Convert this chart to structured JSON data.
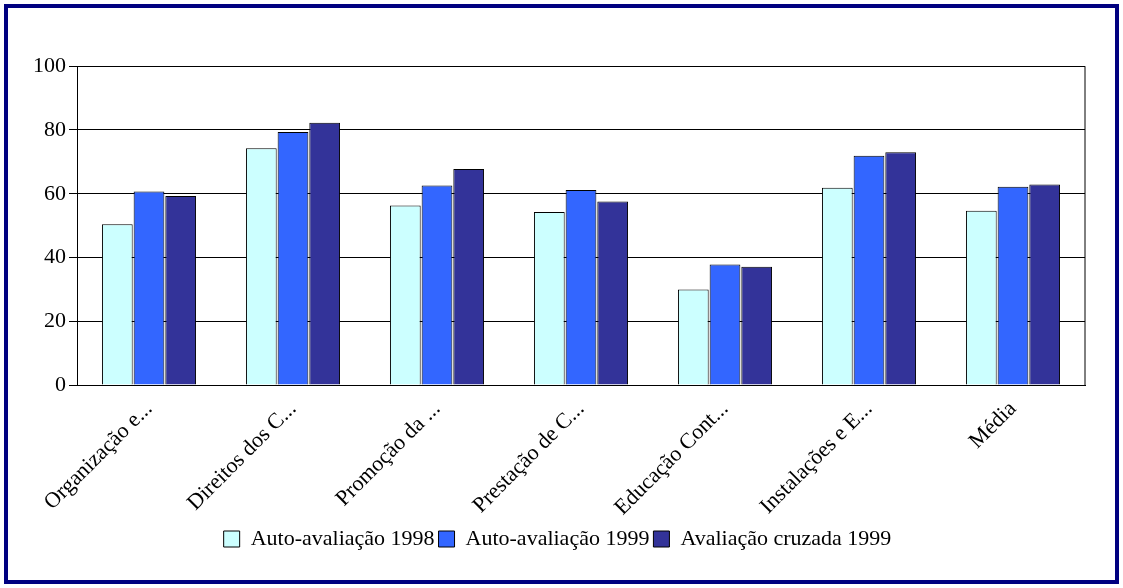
{
  "chart_data": {
    "type": "bar",
    "categories": [
      "Organização e...",
      "Direitos dos C...",
      "Promoção da ...",
      "Prestação de C...",
      "Educação Cont...",
      "Instalações e E...",
      "Média"
    ],
    "series": [
      {
        "name": "Auto-avaliação 1998",
        "color": "#ccffff",
        "values": [
          50.4,
          74.3,
          56.3,
          54.3,
          30,
          61.9,
          54.7
        ]
      },
      {
        "name": "Auto-avaliação 1999",
        "color": "#3366ff",
        "values": [
          60.7,
          79.4,
          62.6,
          61.2,
          37.8,
          71.9,
          62.2
        ]
      },
      {
        "name": "Avaliação cruzada 1999",
        "color": "#333399",
        "values": [
          59.3,
          82.3,
          67.8,
          57.6,
          37.1,
          73,
          62.9
        ]
      }
    ],
    "ylim": [
      0,
      100
    ],
    "yticks": [
      0,
      20,
      40,
      60,
      80,
      100
    ],
    "grid": "y",
    "legend": "bottom"
  }
}
